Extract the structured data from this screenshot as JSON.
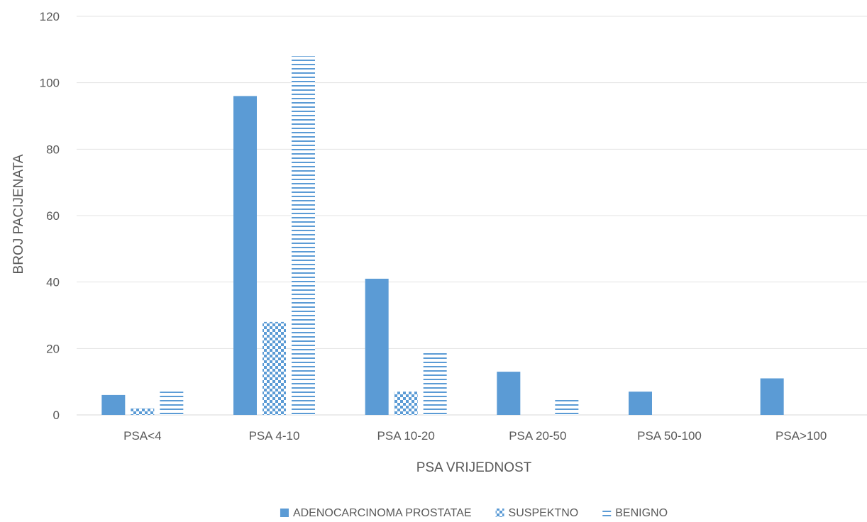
{
  "chart_data": {
    "type": "bar",
    "title": "",
    "xlabel": "PSA VRIJEDNOST",
    "ylabel": "BROJ PACIJENATA",
    "categories": [
      "PSA<4",
      "PSA 4-10",
      "PSA 10-20",
      "PSA 20-50",
      "PSA 50-100",
      "PSA>100"
    ],
    "series": [
      {
        "name": "ADENOCARCINOMA PROSTATAE",
        "values": [
          6,
          96,
          41,
          13,
          7,
          11
        ],
        "color": "#5B9BD5",
        "pattern": "solid"
      },
      {
        "name": "SUSPEKTNO",
        "values": [
          2,
          28,
          7,
          0,
          0,
          0
        ],
        "color": "#5B9BD5",
        "pattern": "checker"
      },
      {
        "name": "BENIGNO",
        "values": [
          7,
          108,
          19,
          5,
          0,
          0
        ],
        "color": "#5B9BD5",
        "pattern": "horizontal-lines"
      }
    ],
    "ylim": [
      0,
      120
    ],
    "yticks": [
      0,
      20,
      40,
      60,
      80,
      100,
      120
    ],
    "grid": true,
    "legend_position": "bottom"
  }
}
